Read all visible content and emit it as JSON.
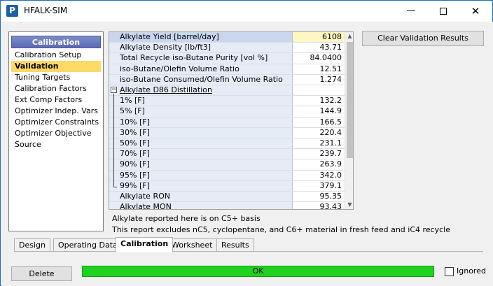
{
  "window": {
    "title": "HFALK-SIM",
    "app_icon": "P"
  },
  "window_controls": {
    "minimize": "—",
    "close": "✕"
  },
  "nav": {
    "header": "Calibration",
    "items": [
      {
        "label": "Calibration Setup"
      },
      {
        "label": "Validation",
        "selected": true
      },
      {
        "label": "Tuning Targets"
      },
      {
        "label": "Calibration Factors"
      },
      {
        "label": "Ext Comp Factors"
      },
      {
        "label": "Optimizer Indep. Vars"
      },
      {
        "label": "Optimizer Constraints"
      },
      {
        "label": "Optimizer Objective"
      },
      {
        "label": "Source"
      }
    ]
  },
  "grid": {
    "rows": [
      {
        "label": "Alkylate Yield [barrel/day]",
        "value": "6108"
      },
      {
        "label": "Alkylate Density [lb/ft3]",
        "value": "43.71"
      },
      {
        "label": "Total Recycle iso-Butane Purity [vol %]",
        "value": "84.0400"
      },
      {
        "label": "iso-Butane/Olefin Volume Ratio",
        "value": "12.51"
      },
      {
        "label": "iso-Butane Consumed/Olefin Volume Ratio",
        "value": "1.274"
      },
      {
        "label": "Alkylate D86 Distillation",
        "value": "",
        "group": true,
        "toggle": "−"
      },
      {
        "label": "1% [F]",
        "value": "132.2",
        "sub": true
      },
      {
        "label": "5% [F]",
        "value": "144.9",
        "sub": true
      },
      {
        "label": "10% [F]",
        "value": "166.5",
        "sub": true
      },
      {
        "label": "30% [F]",
        "value": "220.4",
        "sub": true
      },
      {
        "label": "50% [F]",
        "value": "231.1",
        "sub": true
      },
      {
        "label": "70% [F]",
        "value": "239.7",
        "sub": true
      },
      {
        "label": "90% [F]",
        "value": "263.9",
        "sub": true
      },
      {
        "label": "95% [F]",
        "value": "342.0",
        "sub": true
      },
      {
        "label": "99% [F]",
        "value": "379.1",
        "sub": true
      },
      {
        "label": "Alkylate RON",
        "value": "95.35"
      },
      {
        "label": "Alkylate MON",
        "value": "93.43"
      }
    ]
  },
  "notes": {
    "line1": "Alkylate reported here is on C5+ basis",
    "line2": "This report excludes nC5, cyclopentane, and C6+ material in fresh feed and iC4 recycle"
  },
  "buttons": {
    "clear_validation": "Clear Validation Results",
    "delete": "Delete"
  },
  "tabs": [
    {
      "label": "Design"
    },
    {
      "label": "Operating Data"
    },
    {
      "label": "Calibration",
      "active": true
    },
    {
      "label": "Worksheet"
    },
    {
      "label": "Results"
    }
  ],
  "status": {
    "text": "OK",
    "color": "#1ed21e"
  },
  "ignored": {
    "label": "Ignored",
    "checked": false
  }
}
